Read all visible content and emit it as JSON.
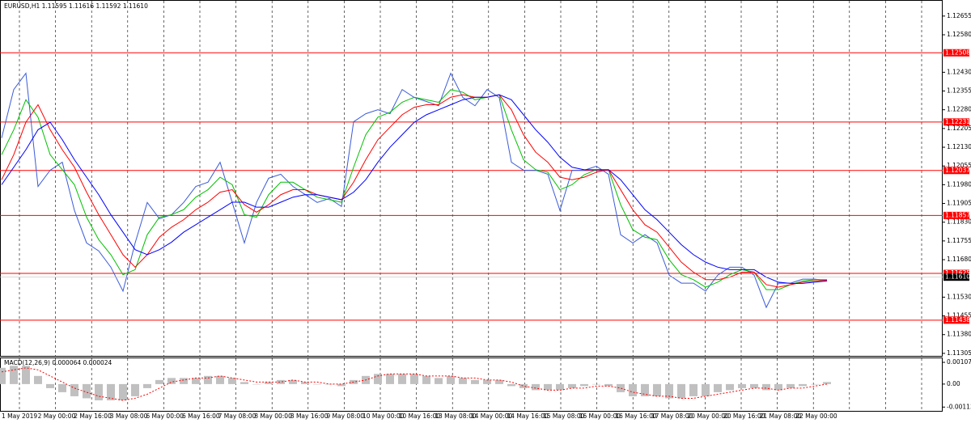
{
  "chart_data": {
    "type": "line",
    "title": "EURUSD,H1  1.11595 1.11616 1.11592 1.11610",
    "x_labels": [
      "1 May 2019",
      "2 May 00:00",
      "2 May 16:00",
      "3 May 08:00",
      "6 May 00:00",
      "6 May 16:00",
      "7 May 08:00",
      "8 May 00:00",
      "8 May 16:00",
      "9 May 08:00",
      "10 May 00:00",
      "10 May 16:00",
      "13 May 08:00",
      "14 May 00:00",
      "14 May 16:00",
      "15 May 08:00",
      "16 May 00:00",
      "16 May 16:00",
      "17 May 08:00",
      "20 May 00:00",
      "20 May 16:00",
      "21 May 08:00",
      "22 May 00:00"
    ],
    "ylim": [
      1.11295,
      1.12716
    ],
    "yticks": [
      1.12655,
      {
        "value": 1.1258,
        "label": "1.12580"
      },
      {
        "value": 1.1243,
        "label": "1.12430"
      },
      1.12355,
      {
        "value": 1.1228,
        "label": "1.12280"
      },
      1.12205,
      {
        "value": 1.1213,
        "label": "1.12130"
      },
      1.12055,
      {
        "value": 1.1198,
        "label": "1.11980"
      },
      1.11905,
      {
        "value": 1.1183,
        "label": "1.11830"
      },
      1.11755,
      {
        "value": 1.1168,
        "label": "1.11680"
      },
      {
        "value": 1.1153,
        "label": "1.11530"
      },
      1.11455,
      {
        "value": 1.1138,
        "label": "1.11380"
      },
      1.11305
    ],
    "series": [
      {
        "color": "#3b5bd9",
        "values": [
          1.12167,
          1.12361,
          1.12426,
          1.11973,
          1.12038,
          1.1207,
          1.11877,
          1.11747,
          1.11715,
          1.1165,
          1.11554,
          1.11747,
          1.11909,
          1.11844,
          1.1186,
          1.11909,
          1.11973,
          1.1199,
          1.1207,
          1.11909,
          1.11747,
          1.11909,
          1.12006,
          1.12022,
          1.11973,
          1.11941,
          1.11909,
          1.11925,
          1.11893,
          1.12232,
          1.12264,
          1.1228,
          1.12264,
          1.12361,
          1.12329,
          1.12313,
          1.12296,
          1.12426,
          1.12329,
          1.12296,
          1.12361,
          1.12329,
          1.1207,
          1.12038,
          1.12038,
          1.12022,
          1.11877,
          1.12038,
          1.12038,
          1.12054,
          1.12022,
          1.1178,
          1.11747,
          1.1178,
          1.11747,
          1.11618,
          1.11586,
          1.11586,
          1.11554,
          1.11618,
          1.1165,
          1.1165,
          1.11618,
          1.11489,
          1.11586,
          1.11586,
          1.11602,
          1.11602,
          1.11596
        ]
      },
      {
        "color": "#00c000",
        "values": [
          1.121,
          1.122,
          1.1232,
          1.1225,
          1.121,
          1.1204,
          1.1198,
          1.1185,
          1.1176,
          1.117,
          1.1162,
          1.1164,
          1.1178,
          1.1185,
          1.1186,
          1.1188,
          1.1193,
          1.1196,
          1.1201,
          1.1198,
          1.1186,
          1.1185,
          1.1194,
          1.1199,
          1.1199,
          1.1196,
          1.1193,
          1.1192,
          1.1191,
          1.1205,
          1.1218,
          1.1225,
          1.1227,
          1.1231,
          1.1233,
          1.1232,
          1.1231,
          1.1236,
          1.1235,
          1.1232,
          1.1233,
          1.1234,
          1.122,
          1.1208,
          1.1204,
          1.1203,
          1.1196,
          1.1198,
          1.1202,
          1.1204,
          1.1204,
          1.119,
          1.118,
          1.1177,
          1.1176,
          1.1168,
          1.1162,
          1.116,
          1.1157,
          1.1159,
          1.1162,
          1.1164,
          1.1163,
          1.1156,
          1.1156,
          1.1158,
          1.11595,
          1.116,
          1.116
        ]
      },
      {
        "color": "#ff0000",
        "values": [
          1.12,
          1.121,
          1.1223,
          1.123,
          1.122,
          1.1212,
          1.1205,
          1.1195,
          1.1186,
          1.1178,
          1.117,
          1.1165,
          1.117,
          1.1177,
          1.1181,
          1.1184,
          1.1188,
          1.1191,
          1.1195,
          1.1196,
          1.119,
          1.1187,
          1.119,
          1.1194,
          1.1196,
          1.1196,
          1.1194,
          1.1193,
          1.1192,
          1.1199,
          1.1208,
          1.1216,
          1.1221,
          1.1226,
          1.1229,
          1.123,
          1.123,
          1.1233,
          1.1234,
          1.1233,
          1.1233,
          1.1234,
          1.1228,
          1.1218,
          1.1211,
          1.1207,
          1.1201,
          1.12,
          1.1201,
          1.1203,
          1.1204,
          1.1196,
          1.1188,
          1.1182,
          1.1179,
          1.1173,
          1.1167,
          1.1163,
          1.116,
          1.116,
          1.1161,
          1.1163,
          1.1163,
          1.1158,
          1.1157,
          1.1158,
          1.1159,
          1.11595,
          1.11598
        ]
      },
      {
        "color": "#0000ff",
        "values": [
          1.1198,
          1.1205,
          1.1212,
          1.122,
          1.1223,
          1.1216,
          1.1208,
          1.1201,
          1.1194,
          1.1186,
          1.1179,
          1.1172,
          1.117,
          1.1172,
          1.1175,
          1.1179,
          1.1182,
          1.1185,
          1.1188,
          1.1191,
          1.1191,
          1.1189,
          1.1189,
          1.1191,
          1.1193,
          1.1194,
          1.1194,
          1.1193,
          1.1192,
          1.1195,
          1.12,
          1.1207,
          1.1213,
          1.1218,
          1.1223,
          1.1226,
          1.1228,
          1.123,
          1.1232,
          1.1233,
          1.1233,
          1.1234,
          1.1232,
          1.1226,
          1.122,
          1.1215,
          1.1209,
          1.1205,
          1.1204,
          1.1204,
          1.1204,
          1.12,
          1.1194,
          1.1188,
          1.1184,
          1.1179,
          1.1174,
          1.117,
          1.1167,
          1.1165,
          1.1164,
          1.1164,
          1.1164,
          1.1161,
          1.1159,
          1.11585,
          1.11585,
          1.1159,
          1.11595
        ]
      }
    ],
    "levels": [
      1.12508,
      1.12231,
      1.12037,
      1.11857,
      1.11625,
      1.11438
    ],
    "level_color": "#ff0000",
    "current_price": {
      "value": 1.1161,
      "label": "1.11610"
    },
    "macd": {
      "title": "MACD(12,26,9) 0.000064 0.000024",
      "ylim": [
        -0.00132,
        0.00127
      ],
      "yticks": [
        0.00107,
        {
          "value": 0,
          "label": "0.00"
        },
        -0.001133
      ],
      "histogram_color": "#c0c0c0",
      "signal_color": "#ff0000",
      "histogram": [
        0.0008,
        0.0009,
        0.0009,
        0.0004,
        -0.0002,
        -0.0004,
        -0.0006,
        -0.0007,
        -0.0008,
        -0.0008,
        -0.0008,
        -0.0006,
        -0.0002,
        0.0002,
        0.0003,
        0.0003,
        0.0003,
        0.0004,
        0.0004,
        0.0003,
        0.0001,
        0,
        0.0001,
        0.0002,
        0.0002,
        0.0001,
        0,
        0,
        -0.0001,
        0.0002,
        0.0004,
        0.0005,
        0.0005,
        0.0005,
        0.0005,
        0.0004,
        0.0003,
        0.0004,
        0.0003,
        0.0002,
        0.0002,
        0.0002,
        -0.0001,
        -0.0002,
        -0.0003,
        -0.0003,
        -0.0003,
        -0.0002,
        -0.0001,
        0,
        -0.0001,
        -0.0004,
        -0.0006,
        -0.0006,
        -0.0006,
        -0.0007,
        -0.0007,
        -0.0006,
        -0.0006,
        -0.0004,
        -0.0003,
        -0.0002,
        -0.0002,
        -0.0003,
        -0.0003,
        -0.0002,
        -0.0001,
        0,
        0.0001
      ],
      "signal": [
        0.0006,
        0.0007,
        0.0008,
        0.0007,
        0.0004,
        0.0001,
        -0.0002,
        -0.0004,
        -0.0006,
        -0.0007,
        -0.0008,
        -0.0007,
        -0.0005,
        -0.0002,
        0.0001,
        0.0002,
        0.0003,
        0.0003,
        0.0004,
        0.0003,
        0.0002,
        0.0001,
        0.0001,
        0.0001,
        0.0002,
        0.0001,
        0.0001,
        0,
        0,
        0.0001,
        0.0002,
        0.0004,
        0.0005,
        0.0005,
        0.0005,
        0.0004,
        0.0004,
        0.0004,
        0.0003,
        0.0003,
        0.0002,
        0.0002,
        0.0001,
        -0.0001,
        -0.0002,
        -0.0003,
        -0.0003,
        -0.0002,
        -0.0002,
        -0.0001,
        -0.0001,
        -0.0002,
        -0.0004,
        -0.0005,
        -0.0006,
        -0.0006,
        -0.0007,
        -0.0007,
        -0.0006,
        -0.0005,
        -0.0004,
        -0.0003,
        -0.0002,
        -0.0002,
        -0.0003,
        -0.0002,
        -0.0002,
        -0.0001,
        0
      ]
    }
  }
}
